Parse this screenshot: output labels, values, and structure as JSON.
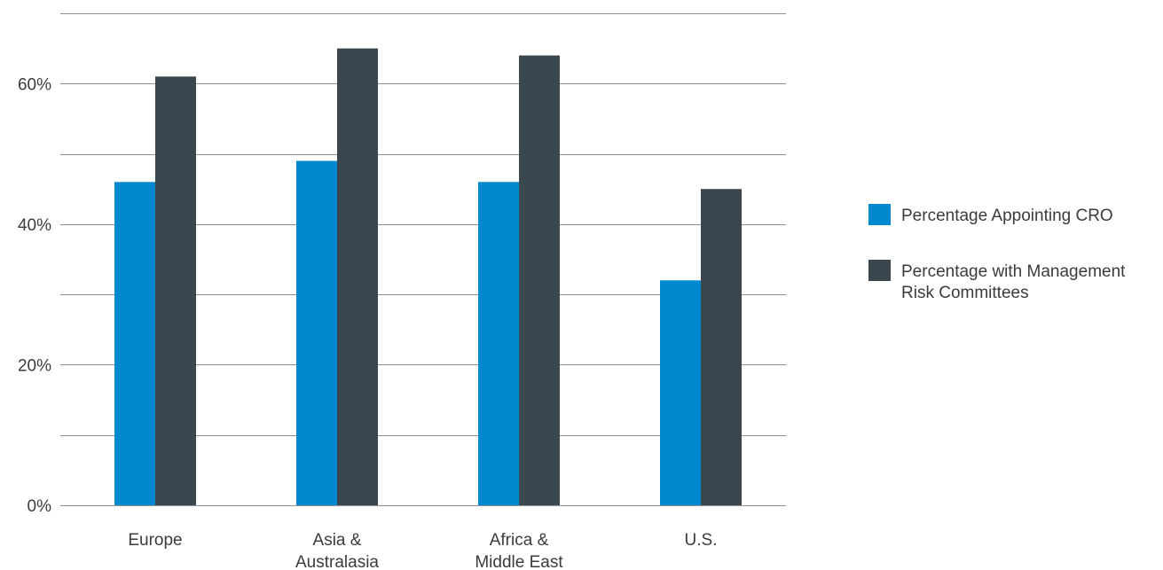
{
  "chart_data": {
    "type": "bar",
    "categories": [
      [
        "Europe"
      ],
      [
        "Asia &",
        "Australasia"
      ],
      [
        "Africa &",
        "Middle East"
      ],
      [
        "U.S."
      ]
    ],
    "series": [
      {
        "name": "Percentage Appointing CRO",
        "legend_lines": [
          "Percentage Appointing CRO"
        ],
        "color": "#0089cf",
        "values": [
          46,
          49,
          46,
          32
        ]
      },
      {
        "name": "Percentage with Management Risk Committees",
        "legend_lines": [
          "Percentage with Management",
          "Risk Committees"
        ],
        "color": "#3a474f",
        "values": [
          61,
          65,
          64,
          45
        ]
      }
    ],
    "ylim": [
      0,
      70
    ],
    "gridlines": [
      0,
      10,
      20,
      30,
      40,
      50,
      60,
      70
    ],
    "yticks": [
      {
        "value": 0,
        "label": "0%"
      },
      {
        "value": 20,
        "label": "20%"
      },
      {
        "value": 40,
        "label": "40%"
      },
      {
        "value": 60,
        "label": "60%"
      }
    ],
    "grid": true,
    "legend_position": "right",
    "title": "",
    "xlabel": "",
    "ylabel": ""
  }
}
